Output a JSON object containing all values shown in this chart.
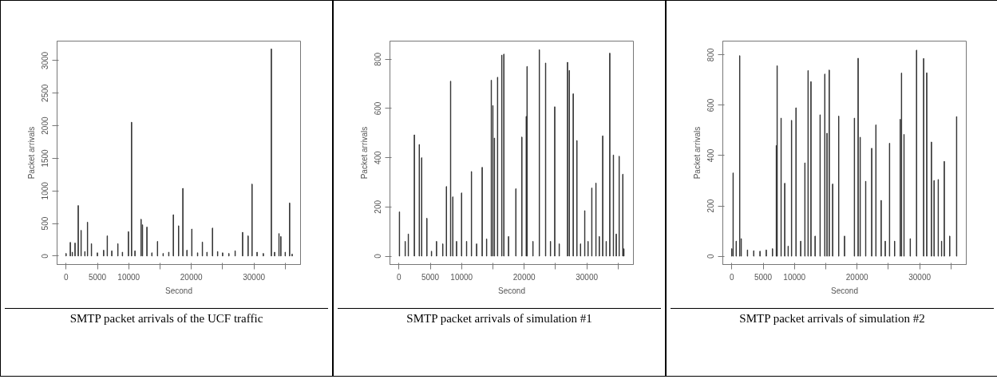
{
  "chart_data": [
    {
      "type": "bar",
      "xlabel": "Second",
      "ylabel": "Packet arrivals",
      "color": "#333333",
      "xlim": [
        -1440,
        37440
      ],
      "ylim": [
        -130,
        3300
      ],
      "xticks": [
        0,
        5000,
        10000,
        {
          "value": 15000,
          "label": null
        },
        20000,
        {
          "value": 25000,
          "label": null
        },
        30000,
        {
          "value": 35000,
          "label": null
        }
      ],
      "yticks": [
        0,
        500,
        1000,
        1500,
        2000,
        2500,
        3000
      ],
      "x": [
        0,
        675,
        1000,
        1430,
        1940,
        2400,
        3000,
        3420,
        4050,
        5000,
        6000,
        6580,
        7300,
        8270,
        9000,
        9960,
        10460,
        11000,
        11980,
        12200,
        12910,
        13700,
        14600,
        15500,
        16400,
        17130,
        17970,
        18650,
        19300,
        20080,
        21000,
        21770,
        22500,
        23380,
        24200,
        25000,
        26000,
        27000,
        28190,
        29070,
        29700,
        30500,
        31500,
        32780,
        33300,
        34000,
        34300,
        35000,
        35700,
        36100
      ],
      "values": [
        40,
        210,
        60,
        200,
        775,
        395,
        70,
        520,
        190,
        50,
        90,
        310,
        80,
        190,
        60,
        375,
        2055,
        80,
        565,
        480,
        445,
        50,
        225,
        40,
        60,
        635,
        465,
        1040,
        90,
        415,
        50,
        215,
        60,
        430,
        70,
        50,
        40,
        80,
        365,
        310,
        1105,
        60,
        40,
        3180,
        60,
        345,
        300,
        60,
        815,
        30
      ],
      "annotations": [
        "SMTP packet arrivals of the UCF traffic"
      ]
    },
    {
      "type": "bar",
      "xlabel": "Second",
      "ylabel": "Packet arrivals",
      "color": "#333333",
      "xlim": [
        -1440,
        37440
      ],
      "ylim": [
        -34,
        874
      ],
      "xticks": [
        0,
        5000,
        10000,
        {
          "value": 15000,
          "label": null
        },
        20000,
        {
          "value": 25000,
          "label": null
        },
        30000,
        {
          "value": 35000,
          "label": null
        }
      ],
      "yticks": [
        0,
        200,
        400,
        600,
        800
      ],
      "x": [
        80,
        1000,
        1500,
        2460,
        3250,
        3625,
        4460,
        5200,
        6000,
        7000,
        7580,
        8250,
        8600,
        9200,
        10000,
        10800,
        11580,
        12400,
        13290,
        14000,
        14750,
        15000,
        15250,
        15750,
        16420,
        16750,
        17500,
        18670,
        19630,
        20330,
        20460,
        21400,
        22420,
        23420,
        24200,
        24880,
        25600,
        26920,
        27210,
        27830,
        28420,
        29000,
        29670,
        30200,
        30800,
        31460,
        32000,
        32540,
        33100,
        33670,
        34250,
        34700,
        35170,
        35750,
        35920
      ],
      "values": [
        180,
        60,
        90,
        493,
        454,
        400,
        154,
        20,
        60,
        50,
        283,
        711,
        241,
        60,
        257,
        60,
        344,
        50,
        361,
        70,
        715,
        612,
        480,
        727,
        817,
        821,
        80,
        274,
        484,
        568,
        771,
        60,
        839,
        785,
        60,
        607,
        50,
        788,
        755,
        660,
        470,
        50,
        185,
        60,
        277,
        297,
        80,
        489,
        60,
        825,
        411,
        90,
        406,
        333,
        30
      ],
      "annotations": [
        "SMTP packet arrivals of simulation #1"
      ]
    },
    {
      "type": "bar",
      "xlabel": "Second",
      "ylabel": "Packet arrivals",
      "color": "#333333",
      "xlim": [
        -1440,
        37440
      ],
      "ylim": [
        -33,
        855
      ],
      "xticks": [
        0,
        5000,
        10000,
        {
          "value": 15000,
          "label": null
        },
        20000,
        {
          "value": 25000,
          "label": null
        },
        30000,
        {
          "value": 35000,
          "label": null
        }
      ],
      "yticks": [
        0,
        200,
        400,
        600,
        800
      ],
      "x": [
        0,
        210,
        700,
        1260,
        1500,
        2500,
        3500,
        4500,
        5500,
        6500,
        7110,
        7240,
        7870,
        8450,
        9000,
        9540,
        10250,
        11000,
        11670,
        12180,
        12640,
        13300,
        14100,
        14850,
        15200,
        15560,
        16100,
        17070,
        18000,
        19580,
        20170,
        20500,
        21380,
        22340,
        23010,
        23850,
        24500,
        25190,
        26000,
        26900,
        27100,
        27500,
        28500,
        29500,
        30630,
        31130,
        31880,
        32300,
        32970,
        33500,
        33930,
        34800,
        35900
      ],
      "values": [
        30,
        331,
        60,
        797,
        70,
        25,
        22,
        20,
        25,
        30,
        440,
        757,
        549,
        290,
        40,
        540,
        590,
        60,
        371,
        738,
        694,
        80,
        562,
        724,
        489,
        740,
        287,
        557,
        80,
        549,
        787,
        473,
        298,
        429,
        522,
        222,
        60,
        449,
        60,
        544,
        728,
        484,
        70,
        819,
        786,
        729,
        454,
        301,
        305,
        60,
        377,
        80,
        555
      ],
      "annotations": [
        "SMTP packet arrivals of simulation #2"
      ]
    }
  ]
}
